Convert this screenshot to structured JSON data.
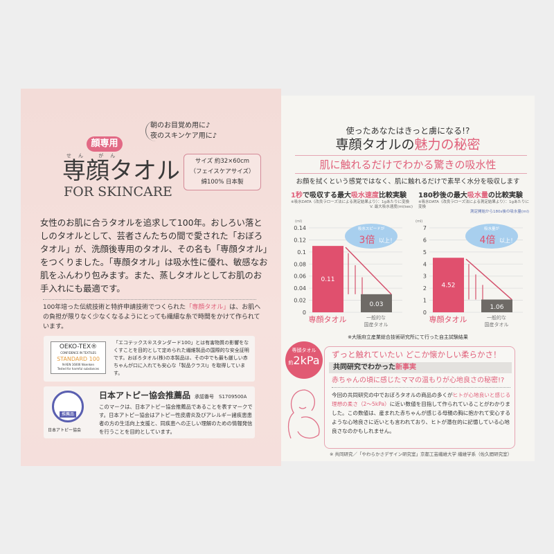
{
  "left": {
    "bubble": [
      "朝のお目覚め用に♪",
      "夜のスキンケア用に♪"
    ],
    "badge": "顔専用",
    "ruby": "せん がん",
    "title": "専顔タオル",
    "subtitle": "FOR SKINCARE",
    "spec": [
      "サイズ 約32×60cm",
      "（フェイスケアサイズ）",
      "綿100% 日本製"
    ],
    "paragraph": "女性のお肌に合うタオルを追求して100年。おしろい落としのタオルとして、芸者さんたちの間で愛された「おぼろタオル」が、洗顔後専用のタオル、その名も「専顔タオル」をつくりました。「専顔タオル」は吸水性に優れ、敏感なお肌をふんわり包みます。また、蒸しタオルとしてお肌のお手入れにも最適です。",
    "small_pre": "100年培った伝統技術と特許申請技術でつくられた",
    "small_hl": "「専顔タオル」",
    "small_post": "は、お肌への負担が限りなく少なくなるようにとっても繊細な糸で時間をかけて作られています。",
    "oeko": {
      "logo": [
        "OEKO-TEX®",
        "CONFIDENCE IN TEXTILES",
        "STANDARD 100",
        "N-XEN 16006 Nisenken",
        "Tested for harmful substances"
      ],
      "text": "「エコテックス®スタンダード100」とは有害物質の影響をなくすことを目的として定められた繊維製品の国際的な安全証明です。おぼろタオル(株)の本製品は、その中でも最も厳しい赤ちゃんが口に入れても安心な「製品クラスⅠ」を取得しています。"
    },
    "atopy": {
      "logo_caption": "日本アトピー協会",
      "logo_badge": "推薦品",
      "title": "日本アトピー協会推薦品",
      "approval": "承認番号　S1709500A",
      "text": "このマークは、日本アトピー協会推薦品であることを表すマークです。日本アトピー協会はアトピー性皮膚炎及びアレルギー諸疾患患者の方の生活向上支援と、同疾患への正しい理解のための情報発信を行うことを目的としています。"
    }
  },
  "right": {
    "subtitle": "使ったあなたはきっと虜になる!?",
    "title_a": "専顔タオルの",
    "title_b": "魅力の秘密",
    "heading": "肌に触れるだけでわかる驚きの吸水性",
    "desc": "お顔を拭くという感覚ではなく、肌に触れるだけで素早く水分を吸収します",
    "footnote1": "※大阪府立産業総合技術研究所にて行った自主試験結果",
    "box": {
      "circle_top": "専顔タオル",
      "circle_pre": "約",
      "circle_val": "2kPa",
      "line1": "ずっと触れていたい どこか懐かしい柔らかさ！",
      "line2_a": "共同研究でわかった",
      "line2_b": "新事実",
      "line3": "赤ちゃんの頃に感じたママの温もりが心地良さの秘密!?",
      "body_a": "今回の共同研究の中でおぼろタオルの商品の多くが",
      "body_b": "ヒトが心地良いと感じる理想の柔さ（2〜5kPa）",
      "body_c": "に近い数値を目指して作られていることがわかりました。この数値は、産まれた赤ちゃんが感じる母親の胸に抱かれて安心するような心地良さに近いとも言われており、ヒトが潜在的に記憶している心地良さなのかもしれません。"
    },
    "footnote2": "※ 共同研究／「やわらかさデザイン研究室」京都工芸繊維大学 繊維学系（佐久間研究室）"
  },
  "chart_data": [
    {
      "type": "bar",
      "title_a": "1秒",
      "title_b": "で吸収する最大",
      "title_c": "吸水速度",
      "title_d": "比較実験",
      "note1": "※吸水DATA（改良ラローズ法による測定結果より）：1gあたりに変換",
      "note2": "V. 最大吸水速度(ml/sec)",
      "unit": "(ml)",
      "categories": [
        "専顔タオル",
        "一般的な国産タオル"
      ],
      "values": [
        0.11,
        0.03
      ],
      "value_labels": [
        "0.11",
        "0.03"
      ],
      "ylim": [
        0,
        0.14
      ],
      "yticks": [
        "0",
        "0.02",
        "0.04",
        "0.06",
        "0.08",
        "0.1",
        "0.12",
        "0.14"
      ],
      "callout_a": "吸水スピードが",
      "callout_b": "3倍",
      "callout_c": "以上！",
      "colors": [
        "#e0506e",
        "#6e6a66"
      ],
      "grid": true
    },
    {
      "type": "bar",
      "title_a": "180秒後の最大",
      "title_b": "吸水量",
      "title_c": "の比較実験",
      "note1": "※吸水DATA（改良ラローズ法による測定結果より）：1gあたりに変換",
      "note2": "測定開始から180s後の吸水量(ml)",
      "unit": "(ml)",
      "categories": [
        "専顔タオル",
        "一般的な国産タオル"
      ],
      "values": [
        4.52,
        1.06
      ],
      "value_labels": [
        "4.52",
        "1.06"
      ],
      "ylim": [
        0,
        7
      ],
      "yticks": [
        "0",
        "1",
        "2",
        "3",
        "4",
        "5",
        "6",
        "7"
      ],
      "callout_a": "吸水量が",
      "callout_b": "4倍",
      "callout_c": "以上！",
      "colors": [
        "#e0506e",
        "#6e6a66"
      ],
      "grid": true
    }
  ]
}
